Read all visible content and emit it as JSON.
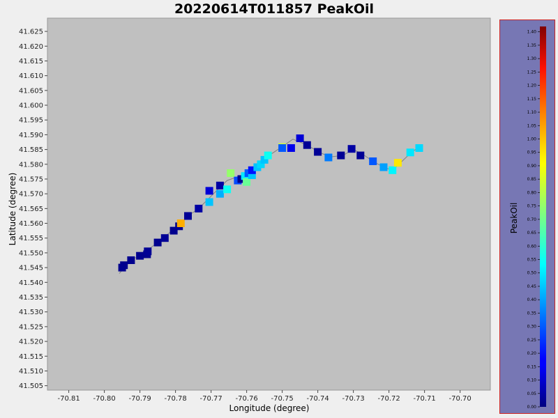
{
  "chart_data": {
    "type": "scatter",
    "title": "20220614T011857 PeakOil",
    "xlabel": "Longitude (degree)",
    "ylabel": "Latitude (degree)",
    "xlim": [
      -70.816,
      -70.6915
    ],
    "ylim": [
      41.5035,
      41.6295
    ],
    "xticks": [
      -70.81,
      -70.8,
      -70.79,
      -70.78,
      -70.77,
      -70.76,
      -70.75,
      -70.74,
      -70.73,
      -70.72,
      -70.71,
      -70.7
    ],
    "xtick_labels": [
      "-70.81",
      "-70.80",
      "-70.79",
      "-70.78",
      "-70.77",
      "-70.76",
      "-70.75",
      "-70.74",
      "-70.73",
      "-70.72",
      "-70.71",
      "-70.70"
    ],
    "yticks": [
      41.505,
      41.51,
      41.515,
      41.52,
      41.525,
      41.53,
      41.535,
      41.54,
      41.545,
      41.55,
      41.555,
      41.56,
      41.565,
      41.57,
      41.575,
      41.58,
      41.585,
      41.59,
      41.595,
      41.6,
      41.605,
      41.61,
      41.615,
      41.62,
      41.625
    ],
    "ytick_labels": [
      "41.505",
      "41.510",
      "41.515",
      "41.520",
      "41.525",
      "41.530",
      "41.535",
      "41.540",
      "41.545",
      "41.550",
      "41.555",
      "41.560",
      "41.565",
      "41.570",
      "41.575",
      "41.580",
      "41.585",
      "41.590",
      "41.595",
      "41.600",
      "41.605",
      "41.610",
      "41.615",
      "41.620",
      "41.625"
    ],
    "grid": false,
    "plot_background": "#c0c0c0",
    "track_color": "#7f7f7f",
    "colorbar": {
      "label": "PeakOil",
      "min": 0.0,
      "max": 1.42,
      "ticks": [
        0.0,
        0.05,
        0.1,
        0.15,
        0.2,
        0.25,
        0.3,
        0.35,
        0.4,
        0.45,
        0.5,
        0.55,
        0.6,
        0.65,
        0.7,
        0.75,
        0.8,
        0.85,
        0.9,
        0.95,
        1.0,
        1.05,
        1.1,
        1.15,
        1.2,
        1.25,
        1.3,
        1.35,
        1.4
      ],
      "tick_labels": [
        "0.00",
        "0.05",
        "0.10",
        "0.15",
        "0.20",
        "0.25",
        "0.30",
        "0.35",
        "0.40",
        "0.45",
        "0.50",
        "0.55",
        "0.60",
        "0.65",
        "0.70",
        "0.75",
        "0.80",
        "0.85",
        "0.90",
        "0.95",
        "1.00",
        "1.05",
        "1.10",
        "1.15",
        "1.20",
        "1.25",
        "1.30",
        "1.35",
        "1.40"
      ],
      "colormap": "jet",
      "panel_color": "#7777b4",
      "border_color": "#cc2222"
    },
    "track": [
      [
        -70.7958,
        41.543
      ],
      [
        -70.7925,
        41.5475
      ],
      [
        -70.7895,
        41.5495
      ],
      [
        -70.785,
        41.5535
      ],
      [
        -70.781,
        41.5575
      ],
      [
        -70.7765,
        41.5625
      ],
      [
        -70.7735,
        41.565
      ],
      [
        -70.7685,
        41.571
      ],
      [
        -70.7655,
        41.5745
      ],
      [
        -70.762,
        41.576
      ],
      [
        -70.7595,
        41.577
      ],
      [
        -70.7555,
        41.5815
      ],
      [
        -70.75,
        41.586
      ],
      [
        -70.747,
        41.5885
      ],
      [
        -70.743,
        41.5865
      ],
      [
        -70.7395,
        41.584
      ],
      [
        -70.7365,
        41.5825
      ],
      [
        -70.733,
        41.583
      ],
      [
        -70.73,
        41.585
      ],
      [
        -70.7275,
        41.5835
      ],
      [
        -70.7245,
        41.581
      ],
      [
        -70.7215,
        41.579
      ],
      [
        -70.719,
        41.578
      ],
      [
        -70.7168,
        41.5805
      ],
      [
        -70.7137,
        41.584
      ],
      [
        -70.7108,
        41.5865
      ]
    ],
    "points": [
      {
        "lon": -70.795,
        "lat": 41.545,
        "value": 0.02
      },
      {
        "lon": -70.7945,
        "lat": 41.5458,
        "value": 0.02
      },
      {
        "lon": -70.7925,
        "lat": 41.5475,
        "value": 0.02
      },
      {
        "lon": -70.79,
        "lat": 41.549,
        "value": 0.02
      },
      {
        "lon": -70.788,
        "lat": 41.5495,
        "value": 0.02
      },
      {
        "lon": -70.7878,
        "lat": 41.5505,
        "value": 0.03
      },
      {
        "lon": -70.785,
        "lat": 41.5535,
        "value": 0.02
      },
      {
        "lon": -70.783,
        "lat": 41.555,
        "value": 0.03
      },
      {
        "lon": -70.7805,
        "lat": 41.5575,
        "value": 0.02
      },
      {
        "lon": -70.779,
        "lat": 41.559,
        "value": 0.02
      },
      {
        "lon": -70.7785,
        "lat": 41.56,
        "value": 1.0
      },
      {
        "lon": -70.7765,
        "lat": 41.5625,
        "value": 0.03
      },
      {
        "lon": -70.7735,
        "lat": 41.565,
        "value": 0.05
      },
      {
        "lon": -70.7705,
        "lat": 41.5672,
        "value": 0.45
      },
      {
        "lon": -70.7705,
        "lat": 41.571,
        "value": 0.12
      },
      {
        "lon": -70.7675,
        "lat": 41.57,
        "value": 0.42
      },
      {
        "lon": -70.7675,
        "lat": 41.5728,
        "value": 0.05
      },
      {
        "lon": -70.7655,
        "lat": 41.5715,
        "value": 0.55
      },
      {
        "lon": -70.7645,
        "lat": 41.577,
        "value": 0.74
      },
      {
        "lon": -70.7625,
        "lat": 41.5745,
        "value": 0.28
      },
      {
        "lon": -70.7615,
        "lat": 41.575,
        "value": 0.02
      },
      {
        "lon": -70.7605,
        "lat": 41.576,
        "value": 0.5
      },
      {
        "lon": -70.76,
        "lat": 41.574,
        "value": 0.68
      },
      {
        "lon": -70.7595,
        "lat": 41.577,
        "value": 0.3
      },
      {
        "lon": -70.7585,
        "lat": 41.5763,
        "value": 0.45
      },
      {
        "lon": -70.7585,
        "lat": 41.578,
        "value": 0.2
      },
      {
        "lon": -70.757,
        "lat": 41.579,
        "value": 0.45
      },
      {
        "lon": -70.756,
        "lat": 41.58,
        "value": 0.48
      },
      {
        "lon": -70.755,
        "lat": 41.5815,
        "value": 0.45
      },
      {
        "lon": -70.754,
        "lat": 41.583,
        "value": 0.55
      },
      {
        "lon": -70.75,
        "lat": 41.5858,
        "value": 0.82
      },
      {
        "lon": -70.75,
        "lat": 41.5855,
        "value": 0.3
      },
      {
        "lon": -70.7475,
        "lat": 41.5855,
        "value": 0.15
      },
      {
        "lon": -70.745,
        "lat": 41.5888,
        "value": 0.12
      },
      {
        "lon": -70.743,
        "lat": 41.5865,
        "value": 0.03
      },
      {
        "lon": -70.74,
        "lat": 41.5842,
        "value": 0.03
      },
      {
        "lon": -70.737,
        "lat": 41.5823,
        "value": 0.35
      },
      {
        "lon": -70.7335,
        "lat": 41.583,
        "value": 0.03
      },
      {
        "lon": -70.7305,
        "lat": 41.5852,
        "value": 0.05
      },
      {
        "lon": -70.728,
        "lat": 41.583,
        "value": 0.03
      },
      {
        "lon": -70.7245,
        "lat": 41.581,
        "value": 0.3
      },
      {
        "lon": -70.7215,
        "lat": 41.579,
        "value": 0.4
      },
      {
        "lon": -70.719,
        "lat": 41.578,
        "value": 0.52
      },
      {
        "lon": -70.7175,
        "lat": 41.5805,
        "value": 0.92
      },
      {
        "lon": -70.714,
        "lat": 41.584,
        "value": 0.5
      },
      {
        "lon": -70.7115,
        "lat": 41.5855,
        "value": 0.48
      }
    ]
  }
}
